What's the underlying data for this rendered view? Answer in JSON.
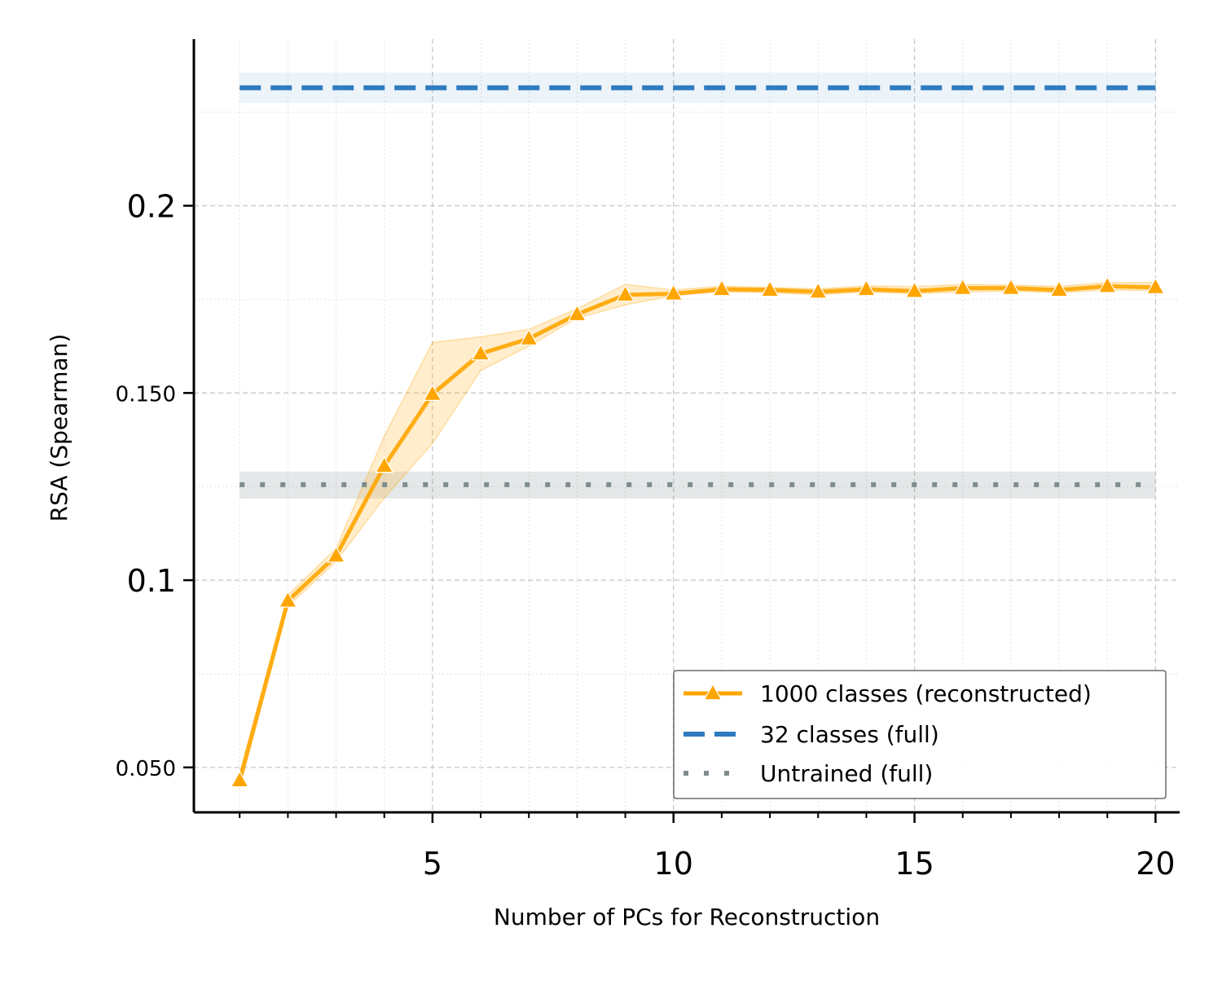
{
  "chart_data": {
    "type": "line",
    "title": "",
    "xlabel": "Number of PCs for Reconstruction",
    "ylabel": "RSA (Spearman)",
    "xlim": [
      0.05,
      20.5
    ],
    "ylim": [
      0.038,
      0.2445
    ],
    "x_major_ticks": [
      5,
      10,
      15,
      20
    ],
    "x_tick_labels": [
      "5",
      "10",
      "15",
      "20"
    ],
    "x_minor_ticks": [
      1,
      2,
      3,
      4,
      6,
      7,
      8,
      9,
      11,
      12,
      13,
      14,
      16,
      17,
      18,
      19
    ],
    "y_ticks": [
      {
        "value": 0.05,
        "label": "0.050",
        "size": "small"
      },
      {
        "value": 0.1,
        "label": "0.1",
        "size": "large"
      },
      {
        "value": 0.15,
        "label": "0.150",
        "size": "small"
      },
      {
        "value": 0.2,
        "label": "0.2",
        "size": "large"
      }
    ],
    "grid": true,
    "legend_position": "lower-right",
    "series": [
      {
        "name": "1000 classes (reconstructed)",
        "style": "solid",
        "marker": "triangle",
        "color": "#FFA500",
        "x": [
          1,
          2,
          3,
          4,
          5,
          6,
          7,
          8,
          9,
          10,
          11,
          12,
          13,
          14,
          15,
          16,
          17,
          18,
          19,
          20
        ],
        "y": [
          0.0465,
          0.0945,
          0.1065,
          0.1305,
          0.1497,
          0.1605,
          0.1645,
          0.171,
          0.1762,
          0.1765,
          0.1777,
          0.1775,
          0.177,
          0.1777,
          0.1772,
          0.178,
          0.178,
          0.1775,
          0.1785,
          0.1782
        ],
        "y_lower": [
          0.0445,
          0.093,
          0.105,
          0.122,
          0.1365,
          0.156,
          0.1625,
          0.17,
          0.1735,
          0.176,
          0.177,
          0.1768,
          0.1762,
          0.177,
          0.1765,
          0.177,
          0.1772,
          0.1768,
          0.1775,
          0.1773
        ],
        "y_upper": [
          0.0485,
          0.096,
          0.1085,
          0.1385,
          0.1635,
          0.165,
          0.167,
          0.1725,
          0.179,
          0.1775,
          0.1785,
          0.1782,
          0.1778,
          0.1786,
          0.1784,
          0.179,
          0.1788,
          0.1785,
          0.1795,
          0.1795
        ]
      },
      {
        "name": "32 classes (full)",
        "style": "dashed",
        "color": "#2E7BC0",
        "y": 0.2315,
        "y_lower": 0.2275,
        "y_upper": 0.2355
      },
      {
        "name": "Untrained (full)",
        "style": "dotted",
        "color": "#7F8C8D",
        "y": 0.1255,
        "y_lower": 0.1218,
        "y_upper": 0.129
      }
    ]
  }
}
